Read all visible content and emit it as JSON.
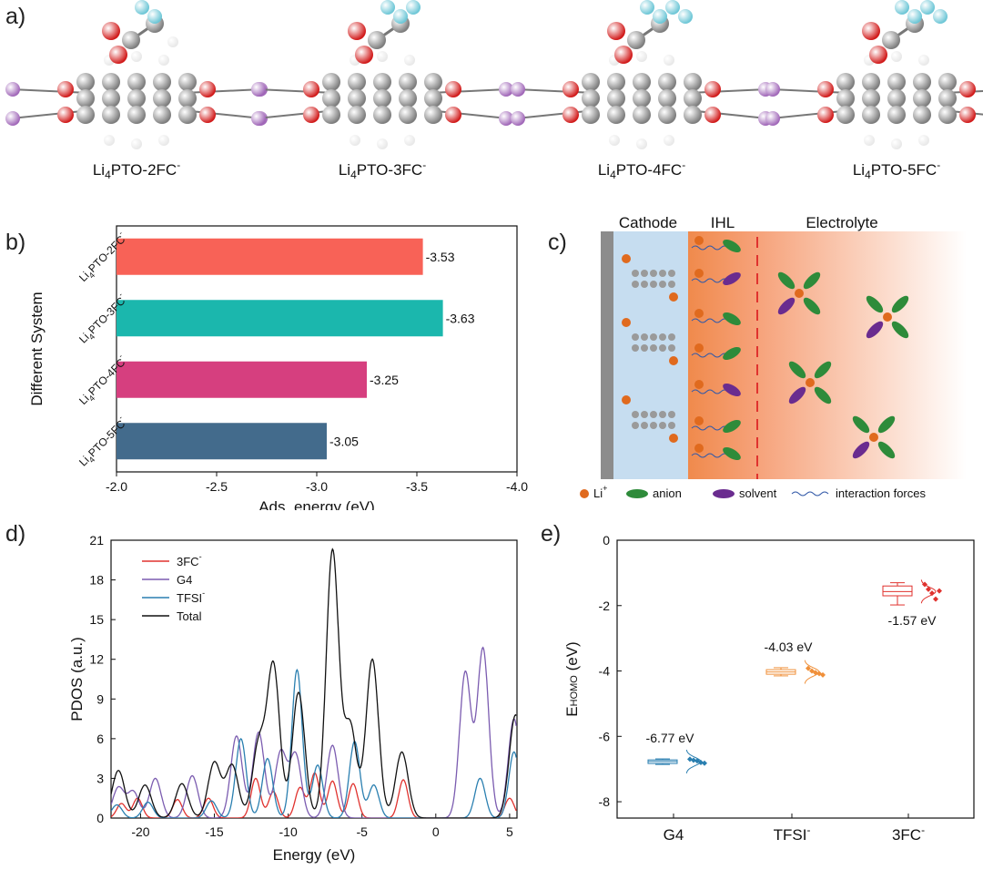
{
  "panels": {
    "a": "a)",
    "b": "b)",
    "c": "c)",
    "d": "d)",
    "e": "e)"
  },
  "molecules": [
    {
      "label_main": "Li",
      "label_sub": "4",
      "label_rest": "PTO-2FC",
      "label_sup": "-"
    },
    {
      "label_main": "Li",
      "label_sub": "4",
      "label_rest": "PTO-3FC",
      "label_sup": "-"
    },
    {
      "label_main": "Li",
      "label_sub": "4",
      "label_rest": "PTO-4FC",
      "label_sup": "-"
    },
    {
      "label_main": "Li",
      "label_sub": "4",
      "label_rest": "PTO-5FC",
      "label_sup": "-"
    }
  ],
  "colors": {
    "carbon": "#7d7d7d",
    "oxygen": "#d11a1a",
    "lithium": "#a066b8",
    "hydrogen": "#e8e8e8",
    "fluorine": "#6cc6d6"
  },
  "schematic": {
    "cathode": "Cathode",
    "ihl": "IHL",
    "electrolyte": "Electrolyte",
    "legend_li": "Li",
    "legend_li_sup": "+",
    "legend_anion": "anion",
    "legend_solvent": "solvent",
    "legend_forces": "interaction forces",
    "li_color": "#e06a1e",
    "anion_color": "#2e8b3a",
    "solvent_color": "#6a2c8f"
  },
  "chart_data": [
    {
      "id": "b",
      "type": "bar",
      "orientation": "horizontal",
      "title": "",
      "xlabel": "Ads. energy (eV)",
      "ylabel": "Different System",
      "xlim": [
        -2.0,
        -4.0
      ],
      "xticks": [
        "-2.0",
        "-2.5",
        "-3.0",
        "-3.5",
        "-4.0"
      ],
      "xtick_values": [
        -2.0,
        -2.5,
        -3.0,
        -3.5,
        -4.0
      ],
      "categories": [
        {
          "main": "Li",
          "sub": "4",
          "rest": "PTO-2FC",
          "sup": "-"
        },
        {
          "main": "Li",
          "sub": "4",
          "rest": "PTO-3FC",
          "sup": "-"
        },
        {
          "main": "Li",
          "sub": "4",
          "rest": "PTO-4FC",
          "sup": "-"
        },
        {
          "main": "Li",
          "sub": "4",
          "rest": "PTO-5FC",
          "sup": "-"
        }
      ],
      "values": [
        -3.53,
        -3.63,
        -3.25,
        -3.05
      ],
      "value_labels": [
        "-3.53",
        "-3.63",
        "-3.25",
        "-3.05"
      ],
      "bar_colors": [
        "#f86257",
        "#1bb7ad",
        "#d63f7f",
        "#436b8c"
      ]
    },
    {
      "id": "d",
      "type": "line",
      "xlabel": "Energy (eV)",
      "ylabel": "PDOS (a.u.)",
      "xlim": [
        -22,
        5.5
      ],
      "ylim": [
        0,
        21
      ],
      "xticks": [
        -20,
        -15,
        -10,
        -5,
        0,
        5
      ],
      "yticks": [
        0,
        3,
        6,
        9,
        12,
        15,
        18,
        21
      ],
      "legend_position": "top-left",
      "series": [
        {
          "name": "3FC",
          "name_sup": "-",
          "color": "#e0322e",
          "peaks": [
            [
              -21.3,
              1.1
            ],
            [
              -20.2,
              1.5
            ],
            [
              -17.5,
              1.4
            ],
            [
              -15.4,
              1.5
            ],
            [
              -12.2,
              3.0
            ],
            [
              -11.0,
              2.0
            ],
            [
              -9.2,
              2.3
            ],
            [
              -8.2,
              3.4
            ],
            [
              -7.0,
              2.8
            ],
            [
              -5.6,
              2.6
            ],
            [
              -2.2,
              2.9
            ],
            [
              5.0,
              1.5
            ]
          ],
          "width": 0.45
        },
        {
          "name": "G4",
          "name_sup": "",
          "color": "#7b5cb0",
          "peaks": [
            [
              -21.5,
              2.3
            ],
            [
              -20.5,
              2.0
            ],
            [
              -19.0,
              3.0
            ],
            [
              -16.5,
              3.2
            ],
            [
              -13.5,
              6.2
            ],
            [
              -12.0,
              6.5
            ],
            [
              -10.5,
              5.0
            ],
            [
              -9.5,
              4.8
            ],
            [
              -7.0,
              5.5
            ],
            [
              2.0,
              11.0
            ],
            [
              3.2,
              12.8
            ],
            [
              5.3,
              7.5
            ]
          ],
          "width": 0.55
        },
        {
          "name": "TFSI",
          "name_sup": "-",
          "color": "#2a7fb0",
          "peaks": [
            [
              -21.6,
              1.0
            ],
            [
              -19.5,
              1.2
            ],
            [
              -15.2,
              1.3
            ],
            [
              -13.2,
              6.0
            ],
            [
              -11.4,
              4.5
            ],
            [
              -9.4,
              11.2
            ],
            [
              -8.0,
              4.0
            ],
            [
              -5.5,
              5.8
            ],
            [
              -4.2,
              2.5
            ],
            [
              3.0,
              3.0
            ],
            [
              5.3,
              5.0
            ]
          ],
          "width": 0.5
        },
        {
          "name": "Total",
          "name_sup": "",
          "color": "#111111",
          "peaks": [
            [
              -21.5,
              3.6
            ],
            [
              -19.7,
              2.5
            ],
            [
              -17.2,
              2.6
            ],
            [
              -15.0,
              4.2
            ],
            [
              -13.8,
              4.0
            ],
            [
              -12.0,
              5.5
            ],
            [
              -11.0,
              11.5
            ],
            [
              -9.3,
              9.5
            ],
            [
              -7.0,
              20.2
            ],
            [
              -4.3,
              12.0
            ],
            [
              -5.8,
              7.0
            ],
            [
              -2.3,
              5.0
            ],
            [
              5.4,
              7.8
            ]
          ],
          "width": 0.6
        }
      ]
    },
    {
      "id": "e",
      "type": "box",
      "ylabel_main": "E",
      "ylabel_sub": "HOMO",
      "ylabel_rest": " (eV)",
      "ylim": [
        -8.5,
        0
      ],
      "yticks": [
        0,
        -2,
        -4,
        -6,
        -8
      ],
      "categories": [
        {
          "label": "G4",
          "sup": ""
        },
        {
          "label": "TFSI",
          "sup": "-"
        },
        {
          "label": "3FC",
          "sup": "-"
        }
      ],
      "boxes": [
        {
          "median": -6.77,
          "q1": -6.83,
          "q3": -6.72,
          "min": -6.86,
          "max": -6.69,
          "mean_label": "-6.77 eV",
          "color": "#2a7fb0",
          "points": [
            -6.7,
            -6.73,
            -6.75,
            -6.8,
            -6.82
          ]
        },
        {
          "median": -4.03,
          "q1": -4.1,
          "q3": -3.96,
          "min": -4.15,
          "max": -3.9,
          "mean_label": "-4.03 eV",
          "color": "#f0903a",
          "points": [
            -3.92,
            -4.0,
            -4.05,
            -4.08,
            -4.12
          ]
        },
        {
          "median": -1.57,
          "q1": -1.7,
          "q3": -1.4,
          "min": -1.98,
          "max": -1.3,
          "mean_label": "-1.57 eV",
          "color": "#e0322e",
          "points": [
            -1.35,
            -1.5,
            -1.62,
            -1.8,
            -1.55
          ]
        }
      ]
    }
  ]
}
